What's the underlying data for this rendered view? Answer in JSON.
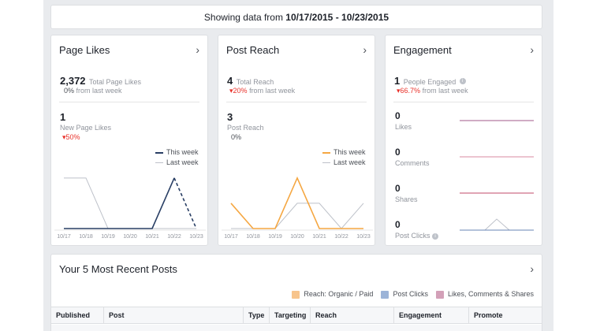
{
  "date_bar": {
    "prefix": "Showing data from ",
    "range": "10/17/2015 - 10/23/2015"
  },
  "page_likes": {
    "title": "Page Likes",
    "total_value": "2,372",
    "total_label": "Total Page Likes",
    "total_change": "0%",
    "total_change_suffix": "from last week",
    "new_value": "1",
    "new_label": "New Page Likes",
    "new_change": "50%",
    "legend_this": "This week",
    "legend_last": "Last week"
  },
  "post_reach": {
    "title": "Post Reach",
    "total_value": "4",
    "total_label": "Total Reach",
    "total_change": "20%",
    "total_change_suffix": "from last week",
    "post_value": "3",
    "post_label": "Post Reach",
    "post_change": "0%",
    "legend_this": "This week",
    "legend_last": "Last week"
  },
  "engagement": {
    "title": "Engagement",
    "people_value": "1",
    "people_label": "People Engaged",
    "people_change": "66.7%",
    "people_change_suffix": "from last week",
    "rows": [
      {
        "value": "0",
        "label": "Likes"
      },
      {
        "value": "0",
        "label": "Comments"
      },
      {
        "value": "0",
        "label": "Shares"
      },
      {
        "value": "0",
        "label": "Post Clicks"
      }
    ]
  },
  "recent_posts": {
    "title": "Your 5 Most Recent Posts",
    "legend": [
      {
        "label": "Reach: Organic / Paid",
        "color": "#f7c48c"
      },
      {
        "label": "Post Clicks",
        "color": "#9cb4d8"
      },
      {
        "label": "Likes, Comments & Shares",
        "color": "#d3a0b8"
      }
    ],
    "columns": [
      "Published",
      "Post",
      "Type",
      "Targeting",
      "Reach",
      "Engagement",
      "Promote"
    ]
  },
  "colors": {
    "this_week_likes": "#283e64",
    "this_week_reach": "#f5a742",
    "last_week": "#bdc1c9",
    "eng_likes": "#a05a88",
    "eng_comments": "#d88aa0",
    "eng_shares": "#c04a6a",
    "eng_clicks": "#6a86b6",
    "negative": "#e9322b"
  },
  "chart_data": [
    {
      "type": "line",
      "categories": [
        "10/17",
        "10/18",
        "10/19",
        "10/20",
        "10/21",
        "10/22",
        "10/23"
      ],
      "series": [
        {
          "name": "This week",
          "values": [
            0,
            0,
            0,
            0,
            0,
            1,
            0
          ]
        },
        {
          "name": "Last week",
          "values": [
            1,
            1,
            0,
            0,
            0,
            0,
            0
          ]
        }
      ],
      "ylim": [
        0,
        1.2
      ]
    },
    {
      "type": "line",
      "categories": [
        "10/17",
        "10/18",
        "10/19",
        "10/20",
        "10/21",
        "10/22",
        "10/23"
      ],
      "series": [
        {
          "name": "This week",
          "values": [
            1,
            0,
            0,
            2,
            0,
            0,
            0
          ]
        },
        {
          "name": "Last week",
          "values": [
            0,
            0,
            0,
            1,
            1,
            0,
            1
          ]
        }
      ],
      "ylim": [
        0,
        2.4
      ]
    }
  ]
}
